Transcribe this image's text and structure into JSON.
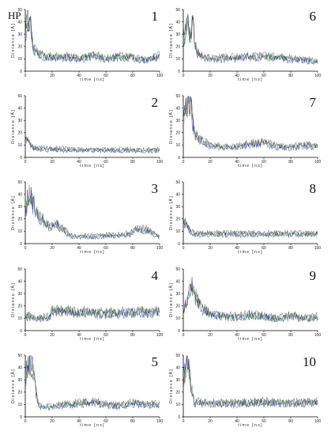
{
  "figure": {
    "tag": "HP",
    "xlabel": "time [ns]",
    "ylabel": "Distance [Å]"
  },
  "colors": {
    "series": [
      "#2a3bd6",
      "#2e8b2e",
      "#d8a0b0",
      "#000000"
    ],
    "axis": "#000000"
  },
  "chart_data": [
    {
      "type": "line",
      "panel": "1",
      "xlim": [
        0,
        100
      ],
      "ylim": [
        0,
        50
      ],
      "xticks": [
        0,
        20,
        40,
        60,
        80,
        100
      ],
      "yticks": [
        0,
        10,
        20,
        30,
        40,
        50
      ],
      "profile": [
        [
          0,
          30
        ],
        [
          2,
          45
        ],
        [
          4,
          38
        ],
        [
          6,
          18
        ],
        [
          10,
          14
        ],
        [
          20,
          11
        ],
        [
          30,
          12
        ],
        [
          40,
          10
        ],
        [
          50,
          13
        ],
        [
          60,
          10
        ],
        [
          70,
          12
        ],
        [
          80,
          11
        ],
        [
          90,
          9
        ],
        [
          100,
          12
        ]
      ]
    },
    {
      "type": "line",
      "panel": "2",
      "xlim": [
        0,
        100
      ],
      "ylim": [
        0,
        50
      ],
      "xticks": [
        0,
        20,
        40,
        60,
        80,
        100
      ],
      "yticks": [
        0,
        10,
        20,
        30,
        40,
        50
      ],
      "profile": [
        [
          0,
          15
        ],
        [
          3,
          12
        ],
        [
          6,
          8
        ],
        [
          10,
          7
        ],
        [
          20,
          7
        ],
        [
          40,
          6
        ],
        [
          60,
          6
        ],
        [
          80,
          6
        ],
        [
          100,
          6
        ]
      ]
    },
    {
      "type": "line",
      "panel": "3",
      "xlim": [
        0,
        100
      ],
      "ylim": [
        0,
        50
      ],
      "xticks": [
        0,
        20,
        40,
        60,
        80,
        100
      ],
      "yticks": [
        0,
        10,
        20,
        30,
        40,
        50
      ],
      "profile": [
        [
          0,
          25
        ],
        [
          3,
          42
        ],
        [
          6,
          32
        ],
        [
          10,
          22
        ],
        [
          14,
          18
        ],
        [
          18,
          14
        ],
        [
          24,
          15
        ],
        [
          30,
          10
        ],
        [
          34,
          6
        ],
        [
          50,
          6
        ],
        [
          70,
          7
        ],
        [
          78,
          8
        ],
        [
          82,
          12
        ],
        [
          90,
          11
        ],
        [
          96,
          8
        ],
        [
          100,
          6
        ]
      ]
    },
    {
      "type": "line",
      "panel": "4",
      "xlim": [
        0,
        100
      ],
      "ylim": [
        0,
        50
      ],
      "xticks": [
        0,
        20,
        40,
        60,
        80,
        100
      ],
      "yticks": [
        0,
        10,
        20,
        30,
        40,
        50
      ],
      "profile": [
        [
          0,
          12
        ],
        [
          10,
          10
        ],
        [
          18,
          11
        ],
        [
          20,
          16
        ],
        [
          40,
          15
        ],
        [
          60,
          14
        ],
        [
          80,
          15
        ],
        [
          100,
          15
        ]
      ]
    },
    {
      "type": "line",
      "panel": "5",
      "xlim": [
        0,
        100
      ],
      "ylim": [
        0,
        50
      ],
      "xticks": [
        0,
        20,
        40,
        60,
        80,
        100
      ],
      "yticks": [
        0,
        10,
        20,
        30,
        40,
        50
      ],
      "profile": [
        [
          0,
          30
        ],
        [
          3,
          45
        ],
        [
          6,
          40
        ],
        [
          8,
          20
        ],
        [
          10,
          9
        ],
        [
          20,
          8
        ],
        [
          30,
          10
        ],
        [
          40,
          11
        ],
        [
          50,
          12
        ],
        [
          60,
          10
        ],
        [
          70,
          9
        ],
        [
          80,
          11
        ],
        [
          90,
          10
        ],
        [
          100,
          10
        ]
      ]
    },
    {
      "type": "line",
      "panel": "6",
      "xlim": [
        0,
        100
      ],
      "ylim": [
        0,
        50
      ],
      "xticks": [
        0,
        20,
        40,
        60,
        80,
        100
      ],
      "yticks": [
        0,
        10,
        20,
        30,
        40,
        50
      ],
      "profile": [
        [
          0,
          25
        ],
        [
          3,
          40
        ],
        [
          5,
          30
        ],
        [
          7,
          38
        ],
        [
          10,
          15
        ],
        [
          20,
          10
        ],
        [
          40,
          11
        ],
        [
          60,
          12
        ],
        [
          80,
          10
        ],
        [
          100,
          8
        ]
      ]
    },
    {
      "type": "line",
      "panel": "7",
      "xlim": [
        0,
        100
      ],
      "ylim": [
        0,
        50
      ],
      "xticks": [
        0,
        20,
        40,
        60,
        80,
        100
      ],
      "yticks": [
        0,
        10,
        20,
        30,
        40,
        50
      ],
      "profile": [
        [
          0,
          30
        ],
        [
          3,
          45
        ],
        [
          6,
          40
        ],
        [
          8,
          20
        ],
        [
          12,
          14
        ],
        [
          20,
          10
        ],
        [
          30,
          8
        ],
        [
          40,
          9
        ],
        [
          50,
          11
        ],
        [
          60,
          12
        ],
        [
          70,
          9
        ],
        [
          80,
          8
        ],
        [
          90,
          10
        ],
        [
          100,
          9
        ]
      ]
    },
    {
      "type": "line",
      "panel": "8",
      "xlim": [
        0,
        100
      ],
      "ylim": [
        0,
        50
      ],
      "xticks": [
        0,
        20,
        40,
        60,
        80,
        100
      ],
      "yticks": [
        0,
        10,
        20,
        30,
        40,
        50
      ],
      "profile": [
        [
          0,
          18
        ],
        [
          3,
          14
        ],
        [
          6,
          9
        ],
        [
          10,
          8
        ],
        [
          30,
          8
        ],
        [
          50,
          8
        ],
        [
          70,
          8
        ],
        [
          90,
          8
        ],
        [
          100,
          8
        ]
      ]
    },
    {
      "type": "line",
      "panel": "9",
      "xlim": [
        0,
        100
      ],
      "ylim": [
        0,
        50
      ],
      "xticks": [
        0,
        20,
        40,
        60,
        80,
        100
      ],
      "yticks": [
        0,
        10,
        20,
        30,
        40,
        50
      ],
      "profile": [
        [
          0,
          15
        ],
        [
          4,
          30
        ],
        [
          7,
          36
        ],
        [
          10,
          25
        ],
        [
          14,
          18
        ],
        [
          20,
          14
        ],
        [
          30,
          12
        ],
        [
          40,
          11
        ],
        [
          50,
          13
        ],
        [
          60,
          12
        ],
        [
          70,
          10
        ],
        [
          80,
          12
        ],
        [
          90,
          10
        ],
        [
          100,
          11
        ]
      ]
    },
    {
      "type": "line",
      "panel": "10",
      "xlim": [
        0,
        100
      ],
      "ylim": [
        0,
        50
      ],
      "xticks": [
        0,
        20,
        40,
        60,
        80,
        100
      ],
      "yticks": [
        0,
        10,
        20,
        30,
        40,
        50
      ],
      "profile": [
        [
          0,
          30
        ],
        [
          3,
          44
        ],
        [
          5,
          32
        ],
        [
          8,
          12
        ],
        [
          20,
          11
        ],
        [
          40,
          11
        ],
        [
          60,
          12
        ],
        [
          80,
          11
        ],
        [
          100,
          12
        ]
      ]
    }
  ]
}
